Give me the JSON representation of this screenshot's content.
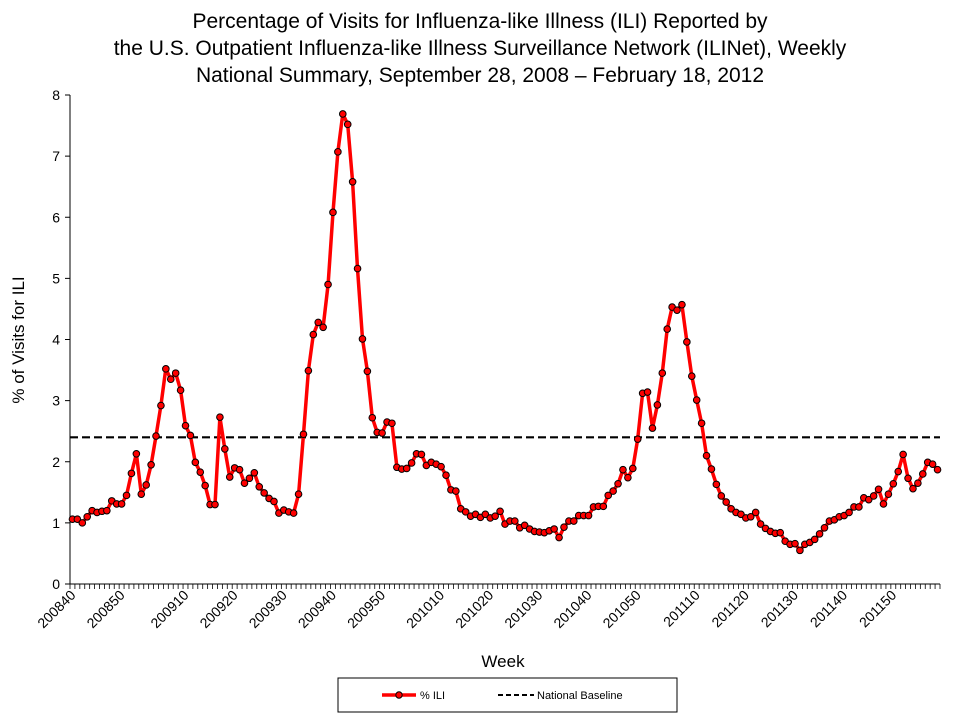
{
  "chart_data": {
    "type": "line",
    "title_lines": [
      "Percentage of Visits for Influenza-like Illness (ILI) Reported by",
      "the U.S. Outpatient Influenza-like Illness Surveillance Network (ILINet), Weekly",
      "National Summary, September 28, 2008 – February 18, 2012"
    ],
    "xlabel": "Week",
    "ylabel": "% of Visits for ILI",
    "ylim": [
      0,
      8
    ],
    "yticks": [
      0,
      1,
      2,
      3,
      4,
      5,
      6,
      7,
      8
    ],
    "grid": false,
    "legend_position": "bottom",
    "x_tick_labels": [
      {
        "label": "200840",
        "index": 0
      },
      {
        "label": "200850",
        "index": 10
      },
      {
        "label": "200910",
        "index": 23
      },
      {
        "label": "200920",
        "index": 33
      },
      {
        "label": "200930",
        "index": 43
      },
      {
        "label": "200940",
        "index": 53
      },
      {
        "label": "200950",
        "index": 63
      },
      {
        "label": "201010",
        "index": 75
      },
      {
        "label": "201020",
        "index": 85
      },
      {
        "label": "201030",
        "index": 95
      },
      {
        "label": "201040",
        "index": 105
      },
      {
        "label": "201050",
        "index": 115
      },
      {
        "label": "201110",
        "index": 127
      },
      {
        "label": "201120",
        "index": 137
      },
      {
        "label": "201130",
        "index": 147
      },
      {
        "label": "201140",
        "index": 157
      },
      {
        "label": "201150",
        "index": 167
      }
    ],
    "series": [
      {
        "name": "% ILI",
        "color": "#ff0000",
        "marker_color": "#ff0000",
        "values": [
          1.06,
          1.06,
          1.0,
          1.1,
          1.2,
          1.17,
          1.19,
          1.2,
          1.36,
          1.31,
          1.31,
          1.45,
          1.81,
          2.13,
          1.47,
          1.62,
          1.95,
          2.42,
          2.92,
          3.52,
          3.35,
          3.45,
          3.17,
          2.59,
          2.43,
          1.99,
          1.83,
          1.61,
          1.3,
          1.3,
          2.73,
          2.21,
          1.75,
          1.9,
          1.87,
          1.65,
          1.73,
          1.82,
          1.59,
          1.49,
          1.4,
          1.35,
          1.16,
          1.21,
          1.18,
          1.16,
          1.47,
          2.45,
          3.49,
          4.08,
          4.28,
          4.2,
          4.9,
          6.08,
          7.07,
          7.69,
          7.52,
          6.58,
          5.16,
          4.01,
          3.48,
          2.72,
          2.48,
          2.47,
          2.65,
          2.63,
          1.91,
          1.88,
          1.89,
          1.98,
          2.13,
          2.12,
          1.94,
          1.99,
          1.96,
          1.92,
          1.78,
          1.54,
          1.52,
          1.23,
          1.18,
          1.11,
          1.14,
          1.09,
          1.14,
          1.08,
          1.11,
          1.19,
          0.98,
          1.03,
          1.03,
          0.92,
          0.96,
          0.9,
          0.86,
          0.85,
          0.84,
          0.87,
          0.9,
          0.76,
          0.93,
          1.03,
          1.03,
          1.12,
          1.12,
          1.12,
          1.26,
          1.27,
          1.27,
          1.45,
          1.52,
          1.64,
          1.87,
          1.74,
          1.89,
          2.37,
          3.12,
          3.14,
          2.55,
          2.93,
          3.45,
          4.17,
          4.53,
          4.48,
          4.57,
          3.96,
          3.4,
          3.01,
          2.63,
          2.1,
          1.88,
          1.63,
          1.44,
          1.34,
          1.23,
          1.17,
          1.14,
          1.08,
          1.1,
          1.17,
          0.98,
          0.91,
          0.86,
          0.83,
          0.84,
          0.7,
          0.65,
          0.66,
          0.55,
          0.65,
          0.68,
          0.73,
          0.82,
          0.92,
          1.03,
          1.05,
          1.1,
          1.12,
          1.17,
          1.26,
          1.26,
          1.41,
          1.38,
          1.44,
          1.55,
          1.31,
          1.47,
          1.64,
          1.84,
          2.12,
          1.73,
          1.56,
          1.65,
          1.8,
          1.99,
          1.96,
          1.87
        ]
      },
      {
        "name": "National Baseline",
        "color": "#000000",
        "style": "dashed",
        "value": 2.4
      }
    ]
  }
}
